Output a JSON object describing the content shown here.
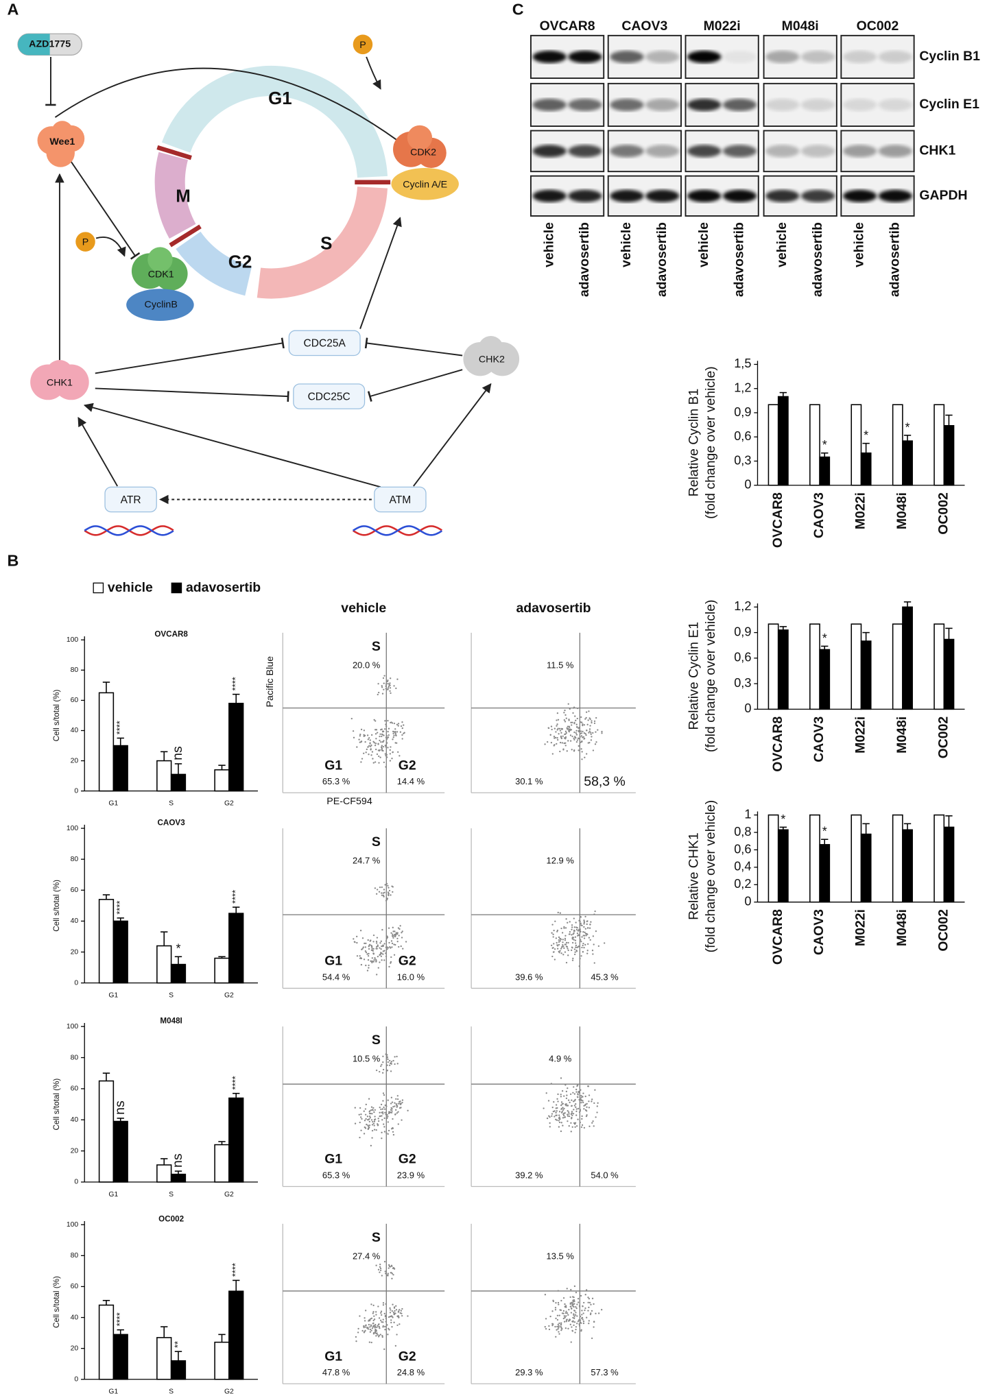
{
  "panels": {
    "a": "A",
    "b": "B",
    "c": "C"
  },
  "diagram": {
    "drug": "AZD1775",
    "wee1": "Wee1",
    "phospho": "P",
    "phases": {
      "g1": "G1",
      "s": "S",
      "g2": "G2",
      "m": "M"
    },
    "cdk2": "CDK2",
    "cyclin_ae": "Cyclin A/E",
    "cdk1": "CDK1",
    "cyclin_b": "CyclinB",
    "cdc25a": "CDC25A",
    "cdc25c": "CDC25C",
    "chk2": "CHK2",
    "chk1": "CHK1",
    "atr": "ATR",
    "atm": "ATM"
  },
  "legend": [
    {
      "name": "vehicle",
      "color": "#ffffff"
    },
    {
      "name": "adavosertib",
      "color": "#000000"
    }
  ],
  "flow": {
    "columns": [
      "vehicle",
      "adavosertib"
    ],
    "x_label": "PE-CF594",
    "y_label": "Pacific Blue",
    "quadrants": {
      "s": "S",
      "g1": "G1",
      "g2": "G2"
    },
    "plots": [
      [
        {
          "s": "20.0 %",
          "g1": "65.3 %",
          "g2": "14.4 %"
        },
        {
          "s": "11.5 %",
          "g1": "30.1 %",
          "g2": "58,3 %"
        }
      ],
      [
        {
          "s": "24.7 %",
          "g1": "54.4 %",
          "g2": "16.0 %"
        },
        {
          "s": "12.9 %",
          "g1": "39.6 %",
          "g2": "45.3 %"
        }
      ],
      [
        {
          "s": "10.5 %",
          "g1": "65.3 %",
          "g2": "23.9 %"
        },
        {
          "s": "4.9 %",
          "g1": "39.2 %",
          "g2": "54.0 %"
        }
      ],
      [
        {
          "s": "27.4 %",
          "g1": "47.8 %",
          "g2": "24.8 %"
        },
        {
          "s": "13.5 %",
          "g1": "29.3 %",
          "g2": "57.3 %"
        }
      ]
    ]
  },
  "blot": {
    "cell_lines": [
      "OVCAR8",
      "CAOV3",
      "M022i",
      "M048i",
      "OC002"
    ],
    "proteins": [
      "Cyclin B1",
      "Cyclin E1",
      "CHK1",
      "GAPDH"
    ],
    "lanes": [
      "vehicle",
      "adavosertib"
    ]
  },
  "chart_data": [
    {
      "type": "bar",
      "title": "OVCAR8",
      "ylabel": [
        "Cell s/total (%)"
      ],
      "categories": [
        "G1",
        "S",
        "G2"
      ],
      "ylim": [
        0,
        100
      ],
      "yticks": [
        0,
        20,
        40,
        60,
        80,
        100
      ],
      "series": [
        {
          "color": "#ffffff",
          "values": [
            65,
            20,
            14
          ],
          "errors": [
            7,
            6,
            3
          ]
        },
        {
          "color": "#000000",
          "values": [
            30,
            11,
            58
          ],
          "errors": [
            5,
            7,
            6
          ],
          "annotations": [
            "****",
            "ns",
            "****"
          ]
        }
      ]
    },
    {
      "type": "bar",
      "title": "CAOV3",
      "ylabel": [
        "Cell s/total (%)"
      ],
      "categories": [
        "G1",
        "S",
        "G2"
      ],
      "ylim": [
        0,
        100
      ],
      "yticks": [
        0,
        20,
        40,
        60,
        80,
        100
      ],
      "series": [
        {
          "color": "#ffffff",
          "values": [
            54,
            24,
            16
          ],
          "errors": [
            3,
            9,
            1
          ]
        },
        {
          "color": "#000000",
          "values": [
            40,
            12,
            45
          ],
          "errors": [
            2,
            5,
            4
          ],
          "annotations": [
            "****",
            "*",
            "****"
          ]
        }
      ]
    },
    {
      "type": "bar",
      "title": "M048I",
      "ylabel": [
        "Cell s/total (%)"
      ],
      "categories": [
        "G1",
        "S",
        "G2"
      ],
      "ylim": [
        0,
        100
      ],
      "yticks": [
        0,
        20,
        40,
        60,
        80,
        100
      ],
      "series": [
        {
          "color": "#ffffff",
          "values": [
            65,
            11,
            24
          ],
          "errors": [
            5,
            4,
            2
          ]
        },
        {
          "color": "#000000",
          "values": [
            39,
            5,
            54
          ],
          "errors": [
            2,
            2,
            3
          ],
          "annotations": [
            "ns",
            "ns",
            "****"
          ]
        }
      ]
    },
    {
      "type": "bar",
      "title": "OC002",
      "ylabel": [
        "Cell s/total (%)"
      ],
      "categories": [
        "G1",
        "S",
        "G2"
      ],
      "ylim": [
        0,
        100
      ],
      "yticks": [
        0,
        20,
        40,
        60,
        80,
        100
      ],
      "series": [
        {
          "color": "#ffffff",
          "values": [
            48,
            27,
            24
          ],
          "errors": [
            3,
            7,
            5
          ]
        },
        {
          "color": "#000000",
          "values": [
            29,
            12,
            57
          ],
          "errors": [
            3,
            6,
            7
          ],
          "annotations": [
            "****",
            "**",
            "****"
          ]
        }
      ]
    },
    {
      "type": "bar",
      "ylabel": [
        "Relative Cyclin B1",
        "(fold change over vehicle)"
      ],
      "categories": [
        "OVCAR8",
        "CAOV3",
        "M022i",
        "M048i",
        "OC002"
      ],
      "ylim": [
        0,
        1.5
      ],
      "yticks": [
        0,
        {
          "value": 0.3,
          "label": "0,3"
        },
        {
          "value": 0.6,
          "label": "0,6"
        },
        {
          "value": 0.9,
          "label": "0,9"
        },
        {
          "value": 1.2,
          "label": "1,2"
        },
        {
          "value": 1.5,
          "label": "1,5"
        }
      ],
      "series": [
        {
          "color": "#ffffff",
          "values": [
            1,
            1,
            1,
            1,
            1
          ]
        },
        {
          "color": "#000000",
          "values": [
            1.1,
            0.35,
            0.4,
            0.55,
            0.74
          ],
          "errors": [
            0.05,
            0.05,
            0.12,
            0.07,
            0.13
          ],
          "annotations": [
            null,
            "*",
            "*",
            "*",
            null
          ]
        }
      ]
    },
    {
      "type": "bar",
      "ylabel": [
        "Relative Cyclin E1",
        "(fold change over vehicle)"
      ],
      "categories": [
        "OVCAR8",
        "CAOV3",
        "M022i",
        "M048i",
        "OC002"
      ],
      "ylim": [
        0,
        1.2
      ],
      "yticks": [
        0,
        {
          "value": 0.3,
          "label": "0,3"
        },
        {
          "value": 0.6,
          "label": "0,6"
        },
        {
          "value": 0.9,
          "label": "0,9"
        },
        {
          "value": 1.2,
          "label": "1,2"
        }
      ],
      "series": [
        {
          "color": "#ffffff",
          "values": [
            1,
            1,
            1,
            1,
            1
          ]
        },
        {
          "color": "#000000",
          "values": [
            0.93,
            0.7,
            0.8,
            1.2,
            0.82
          ],
          "errors": [
            0.04,
            0.04,
            0.1,
            0.06,
            0.13
          ],
          "annotations": [
            null,
            "*",
            null,
            null,
            null
          ]
        }
      ]
    },
    {
      "type": "bar",
      "ylabel": [
        "Relative CHK1",
        "(fold change over vehicle)"
      ],
      "categories": [
        "OVCAR8",
        "CAOV3",
        "M022i",
        "M048i",
        "OC002"
      ],
      "ylim": [
        0,
        1
      ],
      "yticks": [
        0,
        {
          "value": 0.2,
          "label": "0,2"
        },
        {
          "value": 0.4,
          "label": "0,4"
        },
        {
          "value": 0.6,
          "label": "0,6"
        },
        {
          "value": 0.8,
          "label": "0,8"
        },
        1
      ],
      "series": [
        {
          "color": "#ffffff",
          "values": [
            1,
            1,
            1,
            1,
            1
          ]
        },
        {
          "color": "#000000",
          "values": [
            0.83,
            0.66,
            0.78,
            0.83,
            0.86
          ],
          "errors": [
            0.03,
            0.06,
            0.12,
            0.07,
            0.13
          ],
          "annotations": [
            "*",
            "*",
            null,
            null,
            null
          ]
        }
      ]
    }
  ]
}
